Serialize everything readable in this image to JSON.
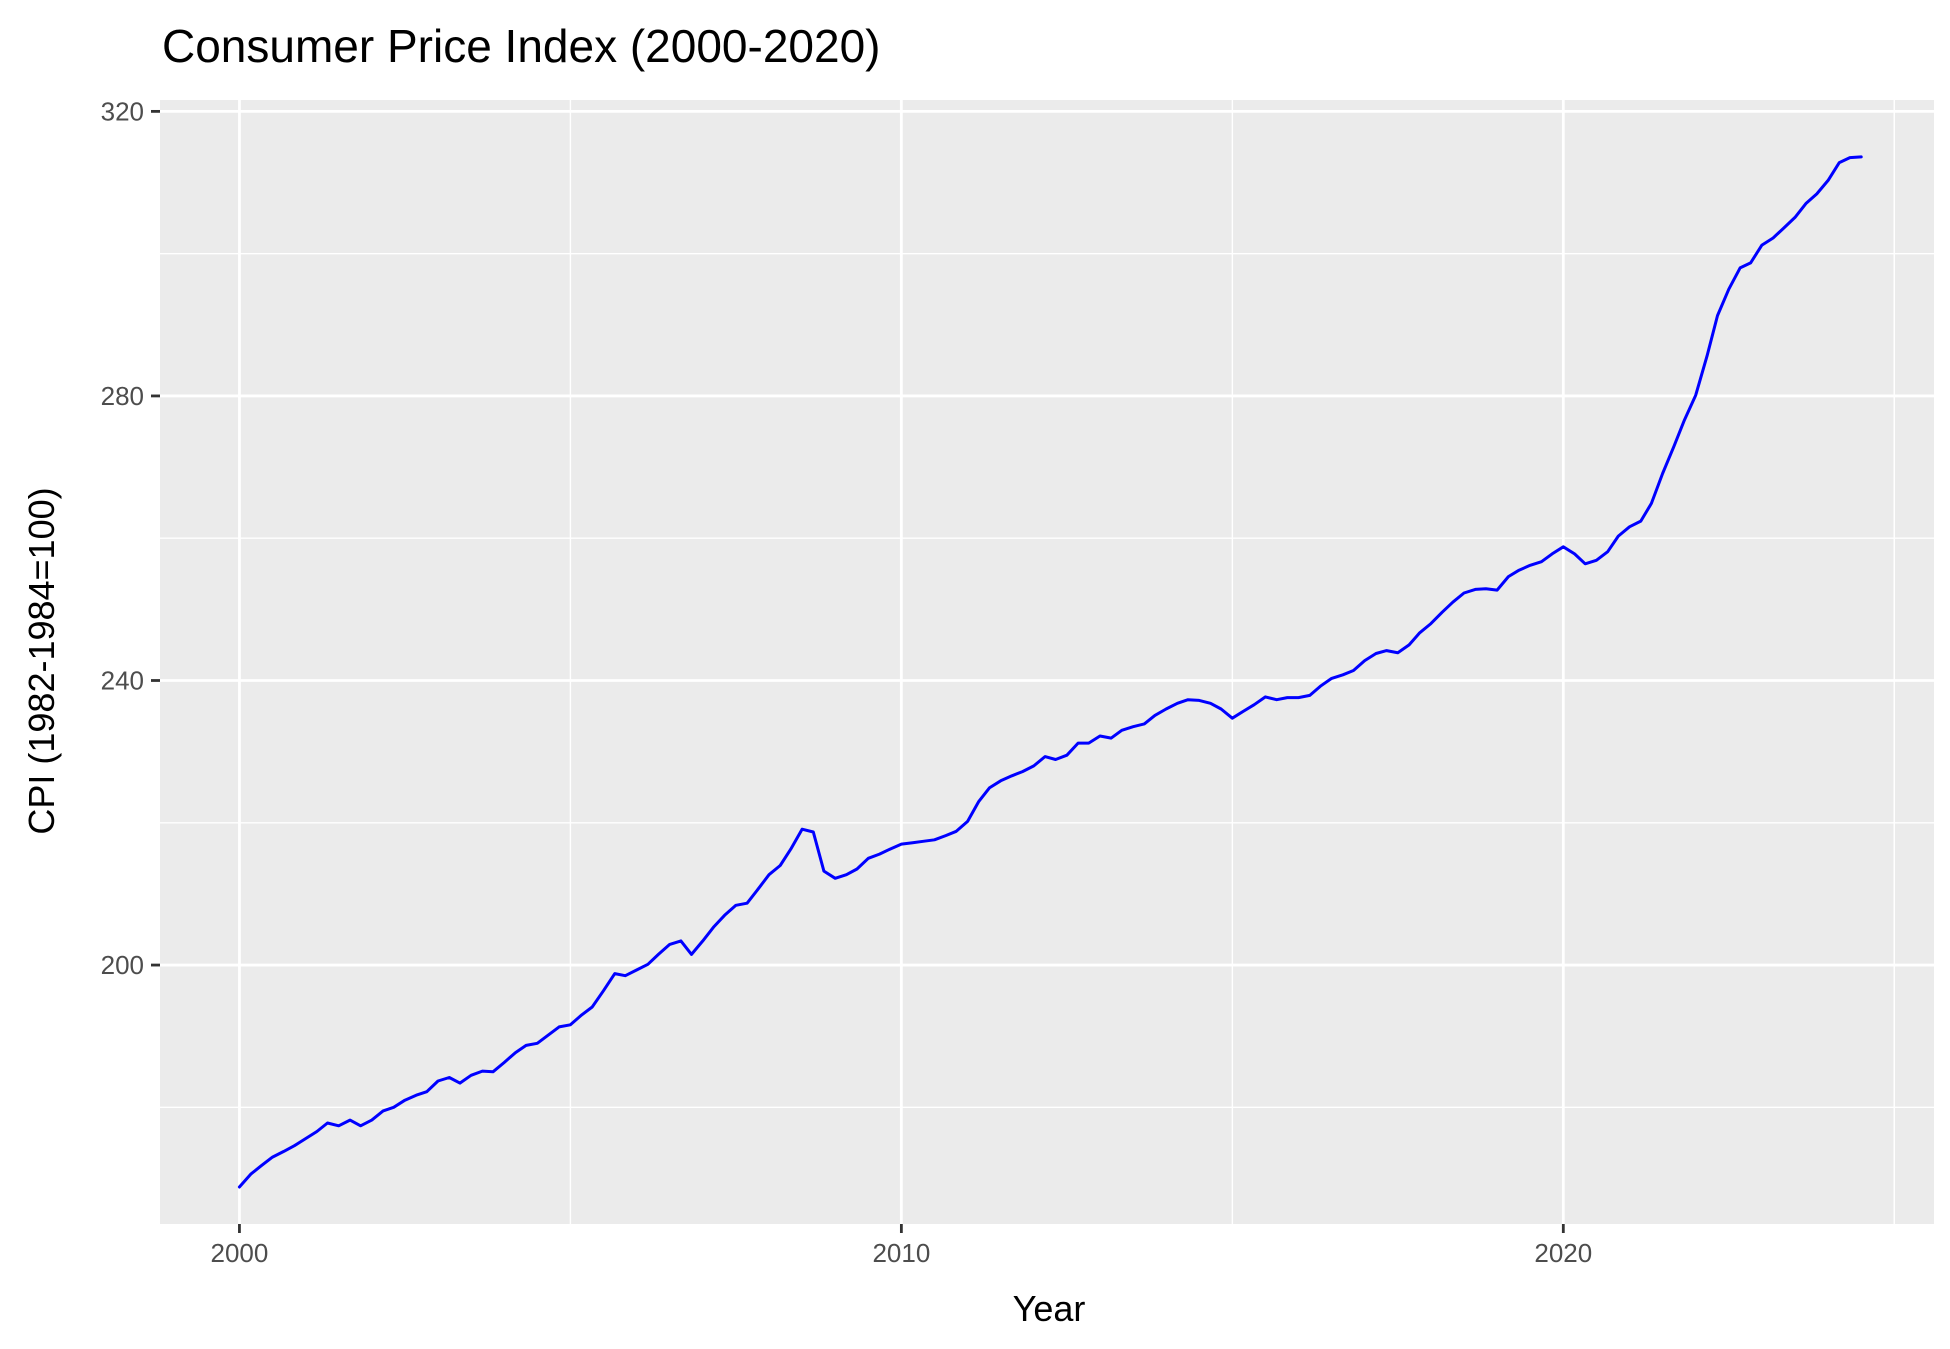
{
  "chart_data": {
    "type": "line",
    "title": "Consumer Price Index (2000-2020)",
    "xlabel": "Year",
    "ylabel": "CPI (1982-1984=100)",
    "xlim": [
      1998.8,
      2025.6
    ],
    "ylim": [
      163.6,
      321.6
    ],
    "x_ticks": [
      2000,
      2010,
      2020
    ],
    "x_tick_labels": [
      "2000",
      "2010",
      "2020"
    ],
    "y_ticks": [
      200,
      240,
      280,
      320
    ],
    "y_tick_labels": [
      "200",
      "240",
      "280",
      "320"
    ],
    "grid": true,
    "legend": "none",
    "series": [
      {
        "color": "#0000ff",
        "x": [
          2000.0,
          2000.17,
          2000.33,
          2000.5,
          2000.67,
          2000.83,
          2001.0,
          2001.17,
          2001.33,
          2001.5,
          2001.67,
          2001.83,
          2002.0,
          2002.17,
          2002.33,
          2002.5,
          2002.67,
          2002.83,
          2003.0,
          2003.17,
          2003.33,
          2003.5,
          2003.67,
          2003.83,
          2004.0,
          2004.17,
          2004.33,
          2004.5,
          2004.67,
          2004.83,
          2005.0,
          2005.17,
          2005.33,
          2005.5,
          2005.67,
          2005.83,
          2006.0,
          2006.17,
          2006.33,
          2006.5,
          2006.67,
          2006.83,
          2007.0,
          2007.17,
          2007.33,
          2007.5,
          2007.67,
          2007.83,
          2008.0,
          2008.17,
          2008.33,
          2008.5,
          2008.67,
          2008.83,
          2009.0,
          2009.17,
          2009.33,
          2009.5,
          2009.67,
          2009.83,
          2010.0,
          2010.17,
          2010.33,
          2010.5,
          2010.67,
          2010.83,
          2011.0,
          2011.17,
          2011.33,
          2011.5,
          2011.67,
          2011.83,
          2012.0,
          2012.17,
          2012.33,
          2012.5,
          2012.67,
          2012.83,
          2013.0,
          2013.17,
          2013.33,
          2013.5,
          2013.67,
          2013.83,
          2014.0,
          2014.17,
          2014.33,
          2014.5,
          2014.67,
          2014.83,
          2015.0,
          2015.17,
          2015.33,
          2015.5,
          2015.67,
          2015.83,
          2016.0,
          2016.17,
          2016.33,
          2016.5,
          2016.67,
          2016.83,
          2017.0,
          2017.17,
          2017.33,
          2017.5,
          2017.67,
          2017.83,
          2018.0,
          2018.17,
          2018.33,
          2018.5,
          2018.67,
          2018.83,
          2019.0,
          2019.17,
          2019.33,
          2019.5,
          2019.67,
          2019.83,
          2020.0,
          2020.17,
          2020.33,
          2020.5,
          2020.67,
          2020.83,
          2021.0,
          2021.17,
          2021.33,
          2021.5,
          2021.67,
          2021.83,
          2022.0,
          2022.17,
          2022.33,
          2022.5,
          2022.67,
          2022.83,
          2023.0,
          2023.17,
          2023.33,
          2023.5,
          2023.67,
          2023.83,
          2024.0,
          2024.17,
          2024.33,
          2024.5
        ],
        "y": [
          168.8,
          170.6,
          171.8,
          173.0,
          173.8,
          174.6,
          175.6,
          176.6,
          177.8,
          177.4,
          178.2,
          177.4,
          178.2,
          179.5,
          180.0,
          181.0,
          181.7,
          182.2,
          183.7,
          184.2,
          183.4,
          184.5,
          185.1,
          185.0,
          186.3,
          187.7,
          188.7,
          189.0,
          190.2,
          191.3,
          191.6,
          193.0,
          194.1,
          196.4,
          198.8,
          198.5,
          199.3,
          200.1,
          201.5,
          202.9,
          203.4,
          201.5,
          203.4,
          205.4,
          207.0,
          208.4,
          208.7,
          210.6,
          212.7,
          214.0,
          216.3,
          219.1,
          218.7,
          213.2,
          212.2,
          212.7,
          213.5,
          215.0,
          215.6,
          216.3,
          217.0,
          217.2,
          217.4,
          217.6,
          218.2,
          218.8,
          220.2,
          223.0,
          224.9,
          225.9,
          226.6,
          227.2,
          228.0,
          229.3,
          228.9,
          229.5,
          231.2,
          231.2,
          232.2,
          231.9,
          233.0,
          233.5,
          233.9,
          235.1,
          236.0,
          236.8,
          237.3,
          237.2,
          236.8,
          236.0,
          234.7,
          235.7,
          236.6,
          237.7,
          237.3,
          237.6,
          237.6,
          237.9,
          239.2,
          240.3,
          240.8,
          241.4,
          242.8,
          243.8,
          244.2,
          243.9,
          245.0,
          246.7,
          248.0,
          249.6,
          251.0,
          252.3,
          252.8,
          252.9,
          252.7,
          254.6,
          255.5,
          256.2,
          256.7,
          257.8,
          258.8,
          257.8,
          256.4,
          256.9,
          258.1,
          260.3,
          261.6,
          262.4,
          264.9,
          269.1,
          272.9,
          276.6,
          280.1,
          285.6,
          291.3,
          295.0,
          298.0,
          298.7,
          301.2,
          302.2,
          303.6,
          305.1,
          307.1,
          308.4,
          310.3,
          312.8,
          313.5,
          313.6
        ]
      }
    ]
  }
}
